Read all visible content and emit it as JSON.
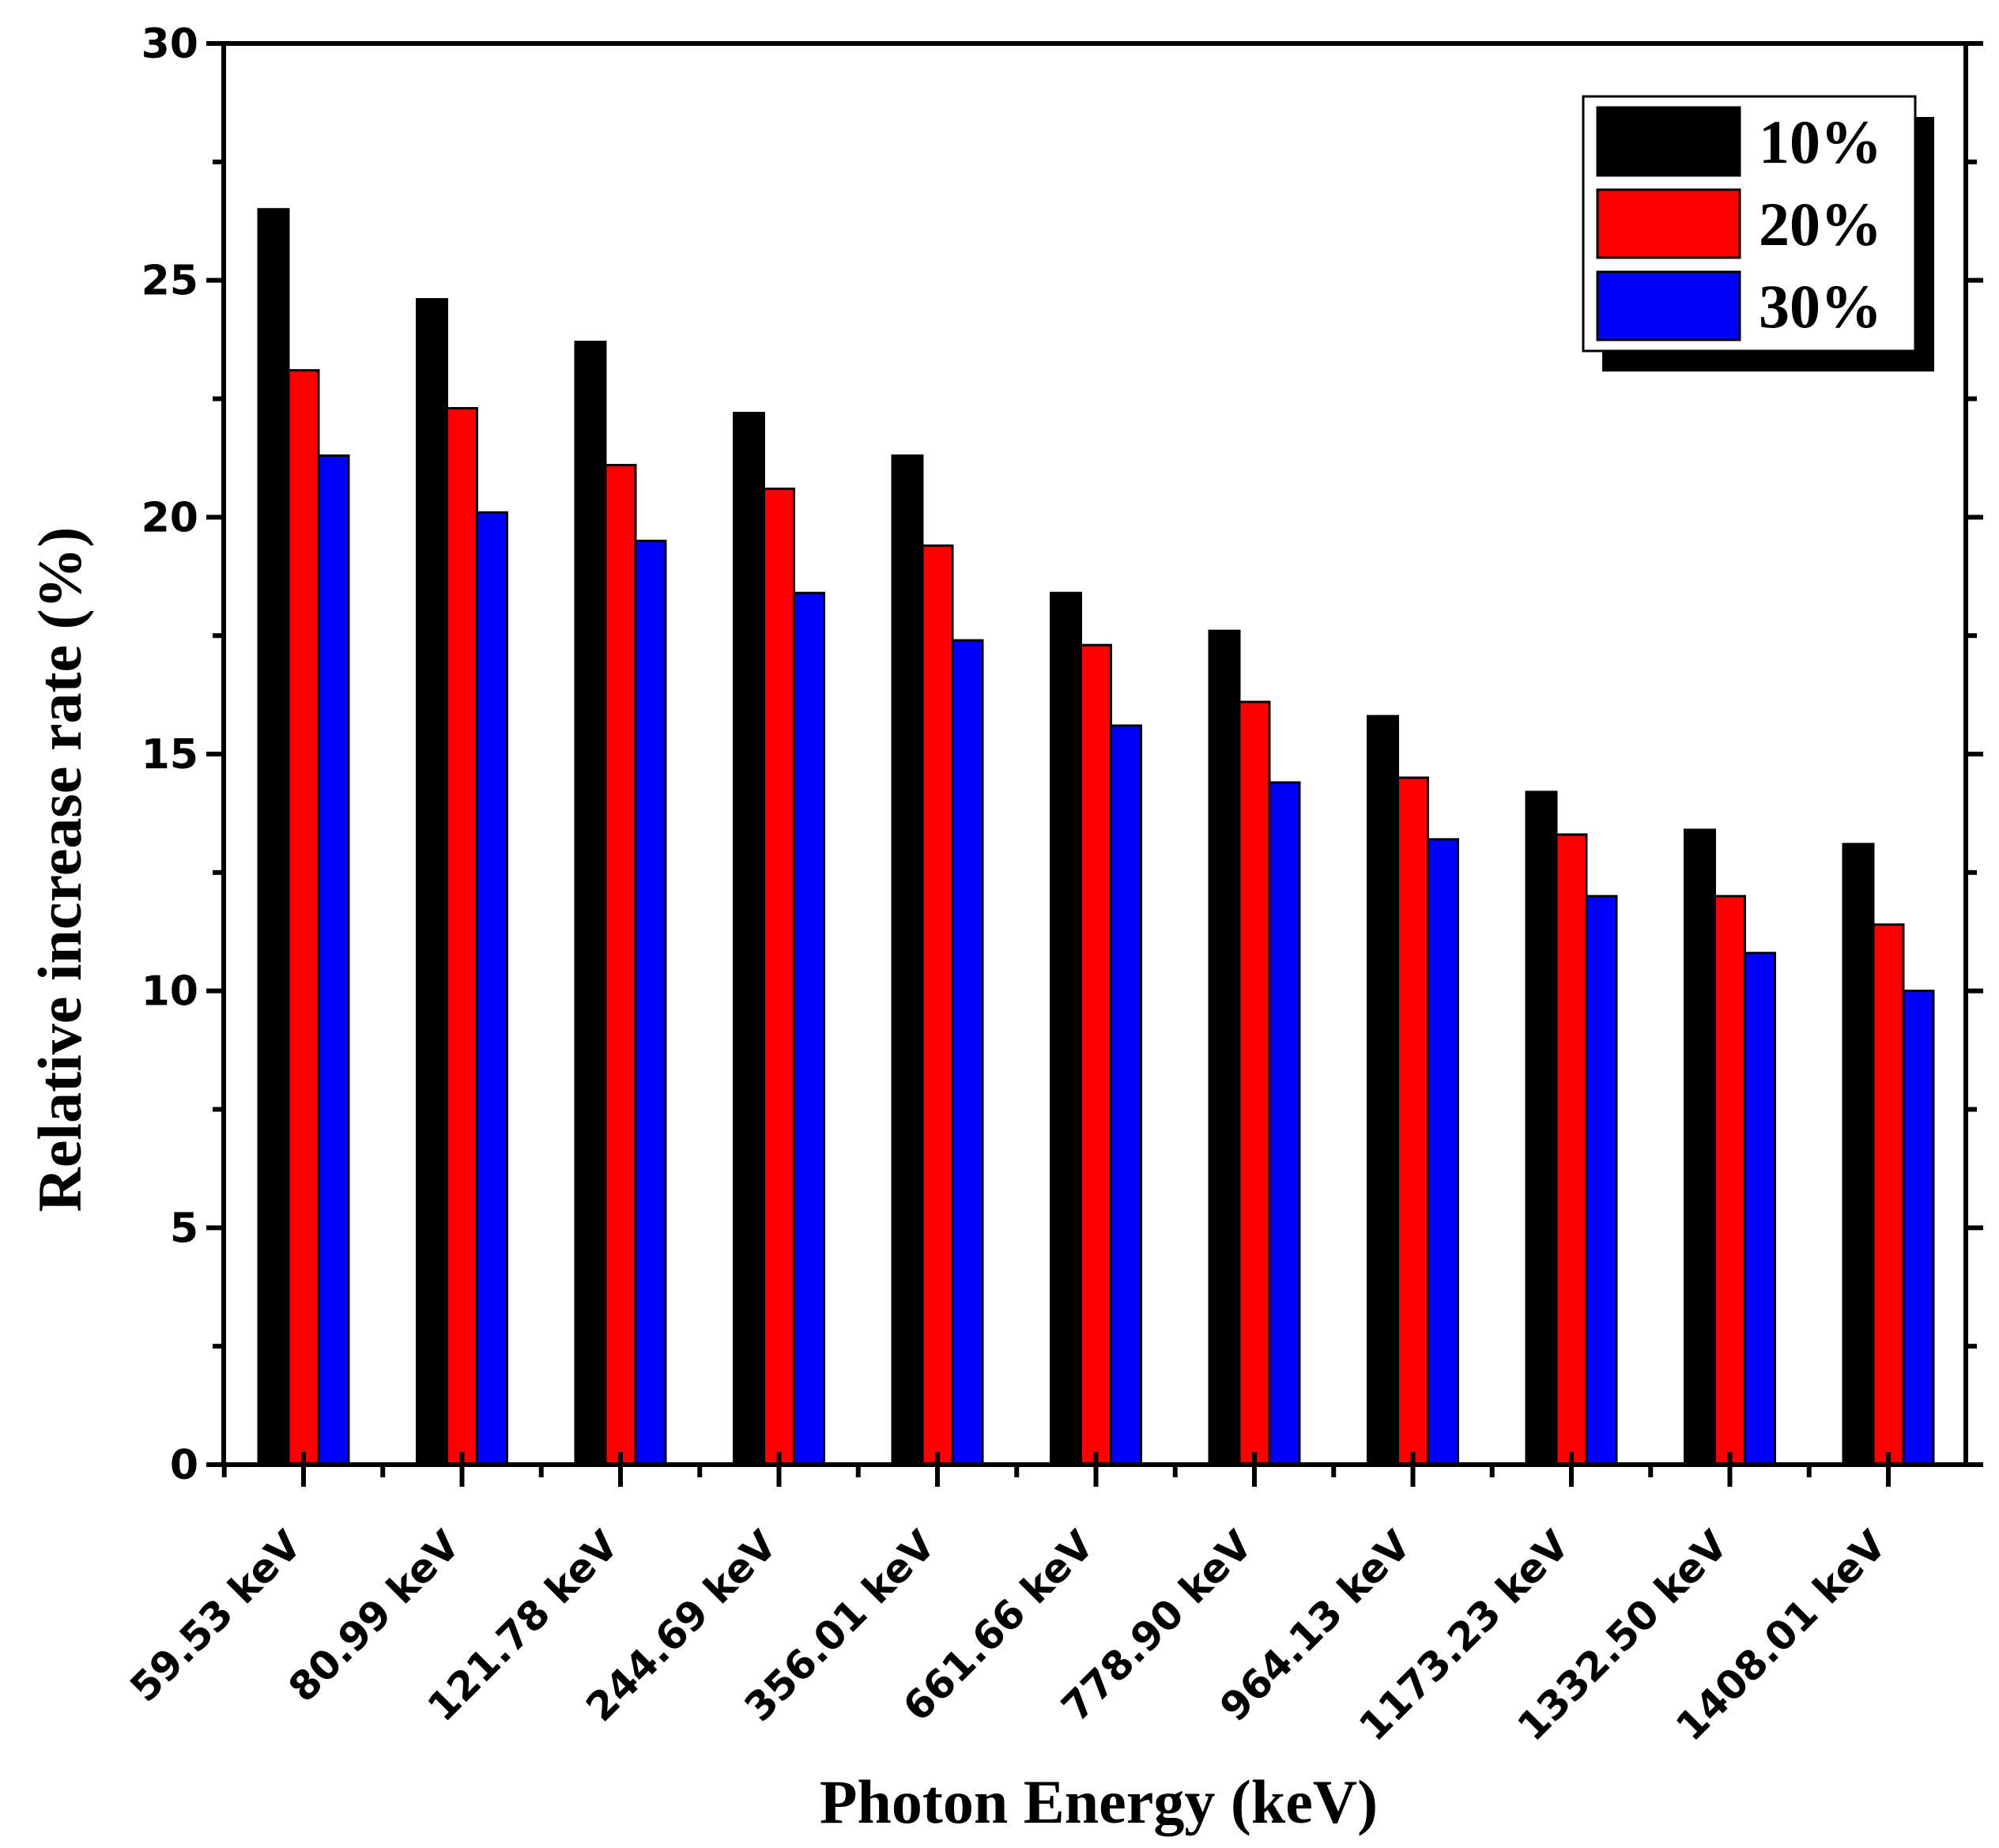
{
  "chart_data": {
    "type": "bar",
    "title": "",
    "xlabel": "Photon Energy (keV)",
    "ylabel": "Relative increase rate (%)",
    "ylim": [
      0,
      30
    ],
    "yticks": [
      "0",
      "5",
      "10",
      "15",
      "20",
      "25",
      "30"
    ],
    "categories": [
      "59.53 keV",
      "80.99 keV",
      "121.78 keV",
      "244.69 keV",
      "356.01 keV",
      "661.66 keV",
      "778.90 keV",
      "964.13 keV",
      "1173.23 keV",
      "1332.50 keV",
      "1408.01 keV"
    ],
    "series": [
      {
        "name": "10%",
        "color": "#000000",
        "values": [
          26.5,
          24.6,
          23.7,
          22.2,
          21.3,
          18.4,
          17.6,
          15.8,
          14.2,
          13.4,
          13.1
        ]
      },
      {
        "name": "20%",
        "color": "#ff0000",
        "values": [
          23.1,
          22.3,
          21.1,
          20.6,
          19.4,
          17.3,
          16.1,
          14.5,
          13.3,
          12.0,
          11.4
        ]
      },
      {
        "name": "30%",
        "color": "#0000ff",
        "values": [
          21.3,
          20.1,
          19.5,
          18.4,
          17.4,
          15.6,
          14.4,
          13.2,
          12.0,
          10.8,
          10.0
        ]
      }
    ],
    "legend_position": "top-right",
    "grid": false
  }
}
